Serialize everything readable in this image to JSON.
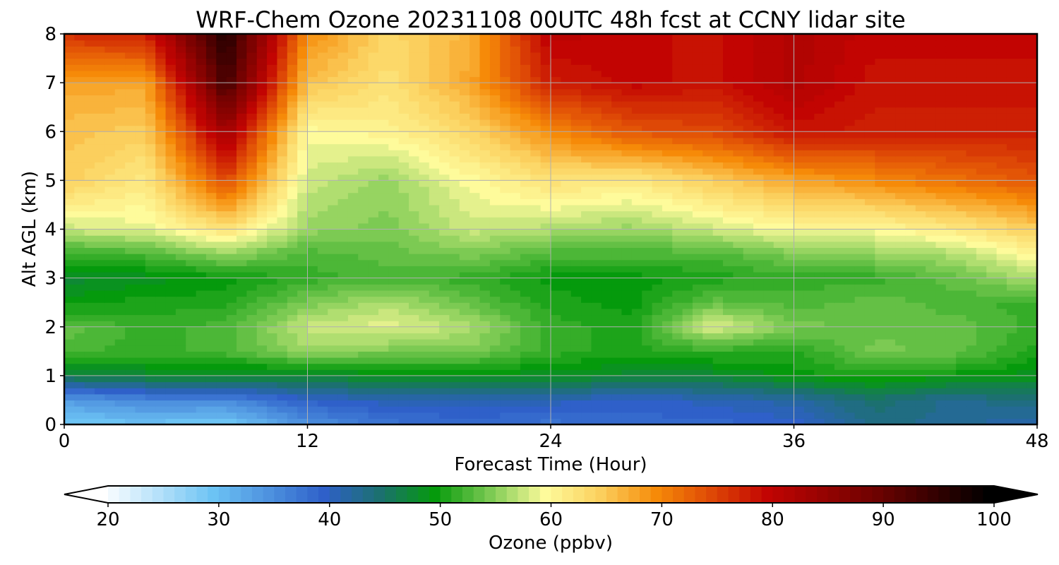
{
  "chart_data": {
    "type": "heatmap",
    "title": "WRF-Chem Ozone  20231108 00UTC 48h fcst at CCNY lidar site",
    "xlabel": "Forecast Time (Hour)",
    "ylabel": "Alt AGL (km)",
    "xlim": [
      0,
      48
    ],
    "ylim": [
      0,
      8
    ],
    "x_ticks": [
      0,
      12,
      24,
      36,
      48
    ],
    "y_ticks": [
      0,
      1,
      2,
      3,
      4,
      5,
      6,
      7,
      8
    ],
    "grid": true,
    "colorbar": {
      "label": "Ozone  (ppbv)",
      "min": 20,
      "max": 100,
      "ticks": [
        20,
        30,
        40,
        50,
        60,
        70,
        80,
        90,
        100
      ],
      "extend": "both",
      "color_stops": [
        {
          "value": 20,
          "color": "#ffffff"
        },
        {
          "value": 30,
          "color": "#6cc3f4"
        },
        {
          "value": 40,
          "color": "#2f60c9"
        },
        {
          "value": 45,
          "color": "#1c7070"
        },
        {
          "value": 50,
          "color": "#059a0c"
        },
        {
          "value": 55,
          "color": "#7cca53"
        },
        {
          "value": 60,
          "color": "#fefb9b"
        },
        {
          "value": 65,
          "color": "#fbcf5d"
        },
        {
          "value": 70,
          "color": "#f68a08"
        },
        {
          "value": 75,
          "color": "#de4806"
        },
        {
          "value": 80,
          "color": "#c20402"
        },
        {
          "value": 90,
          "color": "#6c0201"
        },
        {
          "value": 100,
          "color": "#000000"
        }
      ]
    },
    "times": [
      0,
      4,
      8,
      12,
      16,
      20,
      24,
      28,
      32,
      36,
      40,
      44,
      48
    ],
    "altitudes": [
      0,
      0.5,
      1,
      1.5,
      2,
      2.5,
      3,
      3.5,
      4,
      5,
      6,
      7,
      8
    ],
    "ozone_ppbv": [
      [
        29,
        30,
        29,
        35,
        38,
        39,
        38,
        39,
        39,
        40,
        44,
        43,
        41
      ],
      [
        34,
        36,
        36,
        40,
        41,
        41,
        41,
        40,
        41,
        42,
        45,
        43,
        45
      ],
      [
        47,
        48,
        48,
        48,
        49,
        49,
        49,
        48,
        48,
        50,
        51,
        50,
        49
      ],
      [
        53,
        52,
        53,
        56,
        55,
        55,
        52,
        51,
        52,
        51,
        55,
        54,
        51
      ],
      [
        54,
        52,
        53,
        58,
        59,
        57,
        52,
        51,
        59,
        55,
        54,
        54,
        52
      ],
      [
        50,
        51,
        51,
        55,
        57,
        54,
        51,
        50,
        54,
        53,
        54,
        53,
        52
      ],
      [
        48,
        49,
        50,
        52,
        53,
        52,
        50,
        50,
        51,
        52,
        52,
        54,
        57
      ],
      [
        52,
        53,
        56,
        53,
        54,
        55,
        53,
        53,
        53,
        55,
        56,
        57,
        61
      ],
      [
        58,
        59,
        63,
        56,
        55,
        58,
        57,
        56,
        58,
        60,
        60,
        62,
        65
      ],
      [
        65,
        62,
        75,
        58,
        56,
        60,
        63,
        62,
        65,
        68,
        70,
        72,
        74
      ],
      [
        66,
        65,
        84,
        60,
        61,
        64,
        70,
        74,
        75,
        79,
        78,
        78,
        78
      ],
      [
        68,
        68,
        94,
        66,
        63,
        68,
        78,
        80,
        79,
        82,
        79,
        79,
        79
      ],
      [
        77,
        78,
        97,
        70,
        64,
        67,
        81,
        80,
        79,
        82,
        80,
        80,
        80
      ]
    ]
  }
}
